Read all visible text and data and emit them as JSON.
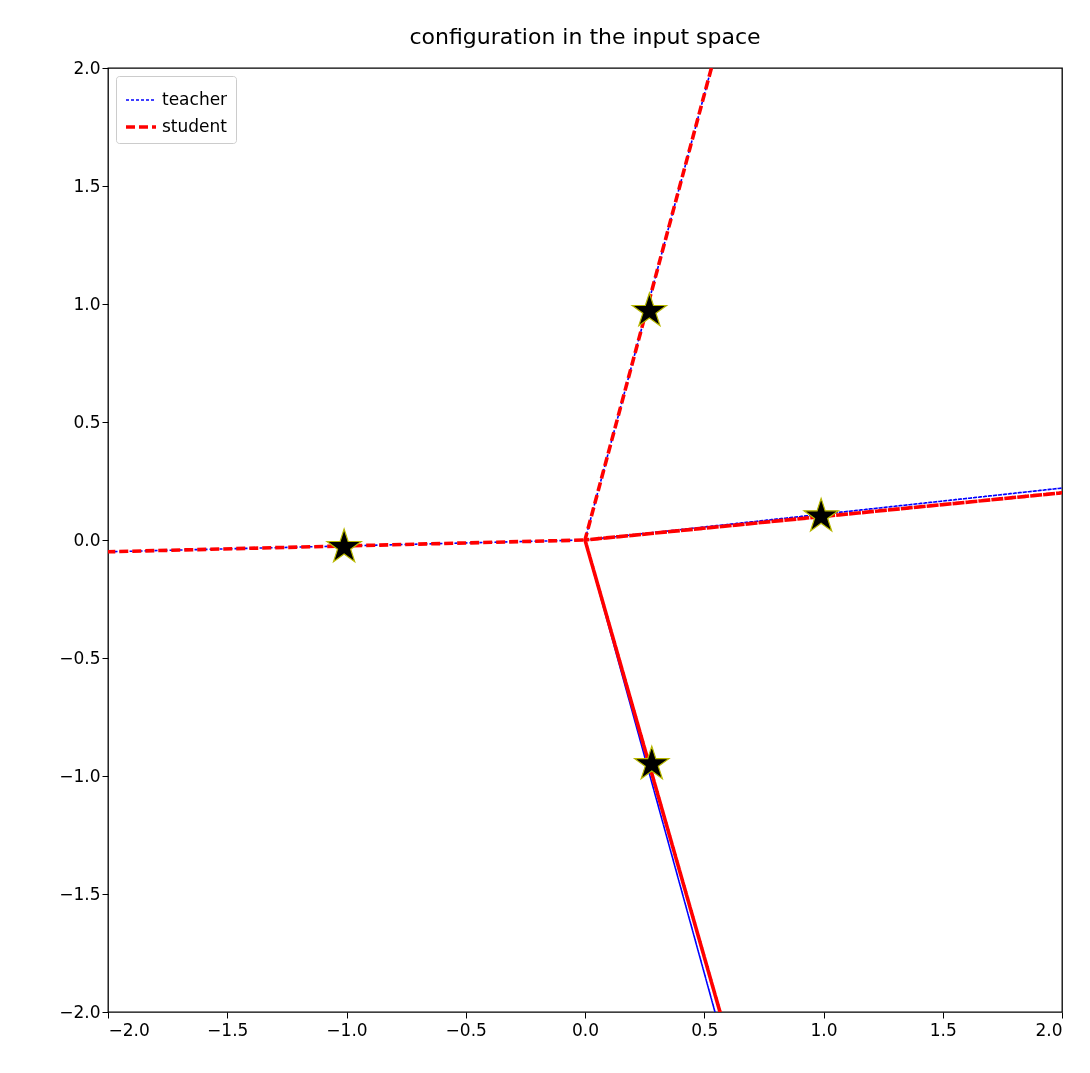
{
  "chart_data": {
    "type": "line",
    "title": "configuration in the input space",
    "series": [
      {
        "name": "teacher",
        "color": "#0000ff",
        "line_style": "dashed",
        "x": [
          0.53,
          0,
          2,
          0,
          0.545,
          0,
          -2
        ],
        "values": [
          2,
          0,
          0.22,
          0,
          -2,
          0,
          -0.05
        ]
      },
      {
        "name": "student",
        "color": "#ff0000",
        "line_style": "dashed",
        "x": [
          0.53,
          0,
          2,
          0,
          0.566,
          0,
          -2
        ],
        "values": [
          2,
          0,
          0.2,
          0,
          -2,
          0,
          -0.05
        ]
      },
      {
        "type": "scatter",
        "color": "#000000",
        "marker": "star",
        "x": [
          -1.01,
          0.27,
          0.99,
          0.28
        ],
        "values": [
          -0.03,
          0.97,
          0.1,
          -0.95
        ]
      }
    ],
    "xlim": [
      -2,
      2
    ],
    "ylim": [
      -2,
      2
    ],
    "xticks": [
      {
        "value": -2,
        "label": "−2.0"
      },
      {
        "value": -1.5,
        "label": "−1.5"
      },
      {
        "value": -1,
        "label": "−1.0"
      },
      {
        "value": -0.5,
        "label": "−0.5"
      },
      {
        "value": 0,
        "label": "0.0"
      },
      {
        "value": 0.5,
        "label": "0.5"
      },
      {
        "value": 1,
        "label": "1.0"
      },
      {
        "value": 1.5,
        "label": "1.5"
      },
      {
        "value": 2,
        "label": "2.0"
      }
    ],
    "yticks": [
      {
        "value": -2,
        "label": "−2.0"
      },
      {
        "value": -1.5,
        "label": "−1.5"
      },
      {
        "value": -1,
        "label": "−1.0"
      },
      {
        "value": -0.5,
        "label": "−0.5"
      },
      {
        "value": 0,
        "label": "0.0"
      },
      {
        "value": 0.5,
        "label": "0.5"
      },
      {
        "value": 1,
        "label": "1.0"
      },
      {
        "value": 1.5,
        "label": "1.5"
      },
      {
        "value": 2,
        "label": "2.0"
      }
    ],
    "grid": false,
    "legend": "top left"
  }
}
